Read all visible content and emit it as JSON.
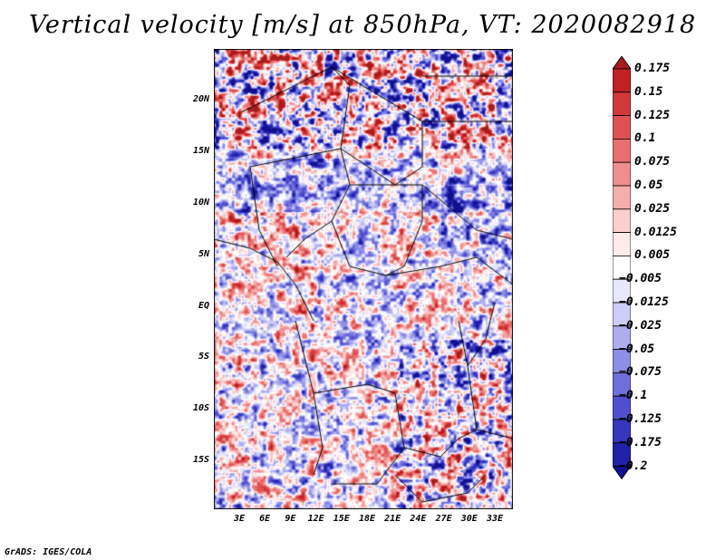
{
  "title": "Vertical velocity [m/s] at 850hPa, VT: 2020082918",
  "footer": "GrADS: IGES/COLA",
  "map": {
    "lon_range": [
      0,
      35
    ],
    "lat_range": [
      -20,
      25
    ],
    "lat_ticks": [
      "20N",
      "15N",
      "10N",
      "5N",
      "EQ",
      "5S",
      "10S",
      "15S"
    ],
    "lon_ticks": [
      "3E",
      "6E",
      "9E",
      "12E",
      "15E",
      "18E",
      "21E",
      "24E",
      "27E",
      "30E",
      "33E"
    ]
  },
  "colorbar": {
    "labels": [
      "0.175",
      "0.15",
      "0.125",
      "0.1",
      "0.075",
      "0.05",
      "0.025",
      "0.0125",
      "0.005",
      "−0.005",
      "−0.0125",
      "−0.025",
      "−0.05",
      "−0.075",
      "−0.1",
      "−0.125",
      "−0.175",
      "−0.2"
    ],
    "colors": [
      "#a51c1c",
      "#c02222",
      "#d23a3a",
      "#e05252",
      "#e87070",
      "#ef8e8e",
      "#f5aeae",
      "#f9cfcf",
      "#fdebeb",
      "#ffffff",
      "#e8e8fb",
      "#cdcdf6",
      "#aeaeef",
      "#8e8ee6",
      "#6f6fdc",
      "#5050cf",
      "#3535be",
      "#2020a8",
      "#10108c"
    ]
  }
}
